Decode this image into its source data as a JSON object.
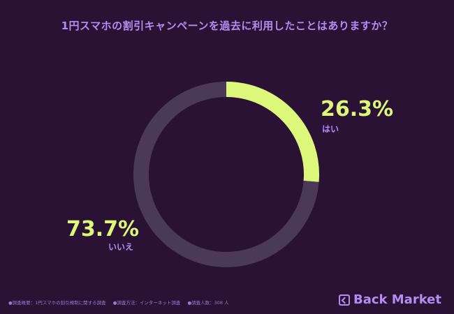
{
  "title": "1円スマホの割引キャンペーンを過去に利用したことはありますか？",
  "chart_data": {
    "type": "pie",
    "title": "1円スマホの割引キャンペーンを過去に利用したことはありますか？",
    "slices": [
      {
        "label": "はい",
        "value": 26.3,
        "display": "26.3%",
        "color": "#dcf77a"
      },
      {
        "label": "いいえ",
        "value": 73.7,
        "display": "73.7%",
        "color": "#4a3a58"
      }
    ]
  },
  "footer": {
    "items": [
      "●調査概要：1円スマホの割引規制に関する調査",
      "●調査方法：インターネット調査",
      "●調査人数：308 人"
    ]
  },
  "brand": {
    "name": "Back Market",
    "logo": "back-market-logo-icon"
  },
  "colors": {
    "background": "#2a1235",
    "accent": "#dcf77a",
    "purple": "#b58cf0"
  }
}
